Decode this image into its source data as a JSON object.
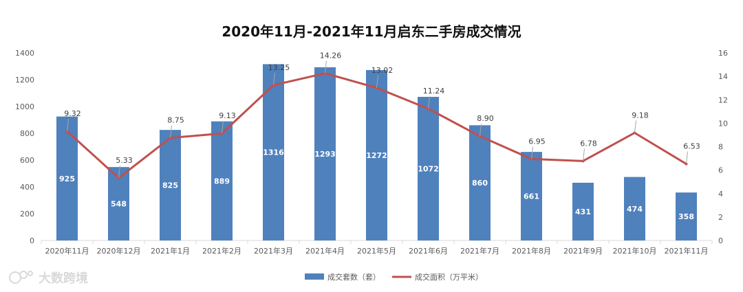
{
  "chart_data": {
    "type": "bar",
    "title": "2020年11月-2021年11月启东二手房成交情况",
    "categories": [
      "2020年11月",
      "2020年12月",
      "2021年1月",
      "2021年2月",
      "2021年3月",
      "2021年4月",
      "2021年5月",
      "2021年6月",
      "2021年7月",
      "2021年8月",
      "2021年9月",
      "2021年10月",
      "2021年11月"
    ],
    "series": [
      {
        "name": "成交套数（套）",
        "type": "bar",
        "axis": "left",
        "color": "#4f81bd",
        "values": [
          925,
          548,
          825,
          889,
          1316,
          1293,
          1272,
          1072,
          860,
          661,
          431,
          474,
          358
        ],
        "data_labels": [
          "925",
          "548",
          "825",
          "889",
          "1316",
          "1293",
          "1272",
          "1072",
          "860",
          "661",
          "431",
          "474",
          "358"
        ]
      },
      {
        "name": "成交面积（万平米）",
        "type": "line",
        "axis": "right",
        "color": "#c0504d",
        "values": [
          9.32,
          5.33,
          8.75,
          9.13,
          13.25,
          14.26,
          13.02,
          11.24,
          8.9,
          6.95,
          6.78,
          9.18,
          6.53
        ],
        "data_labels": [
          "9.32",
          "5.33",
          "8.75",
          "9.13",
          "13.25",
          "14.26",
          "13.02",
          "11.24",
          "8.90",
          "6.95",
          "6.78",
          "9.18",
          "6.53"
        ]
      }
    ],
    "y_left": {
      "min": 0,
      "max": 1400,
      "ticks": [
        "0",
        "200",
        "400",
        "600",
        "800",
        "1000",
        "1200",
        "1400"
      ]
    },
    "y_right": {
      "min": 0,
      "max": 16,
      "ticks": [
        "0",
        "2",
        "4",
        "6",
        "8",
        "10",
        "12",
        "14",
        "16"
      ]
    },
    "grid": false,
    "legend_position": "bottom"
  },
  "watermark": "大数跨境"
}
